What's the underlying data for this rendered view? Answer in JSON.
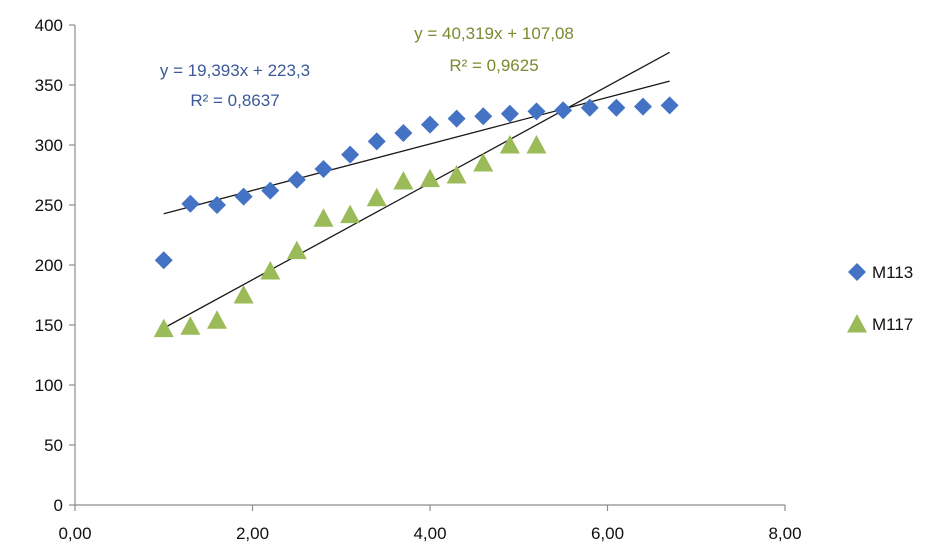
{
  "chart_data": {
    "type": "scatter",
    "title": "",
    "xlabel": "",
    "ylabel": "",
    "xlim": [
      0,
      8
    ],
    "ylim": [
      0,
      400
    ],
    "x_ticks": [
      "0,00",
      "2,00",
      "4,00",
      "6,00",
      "8,00"
    ],
    "y_ticks": [
      "0",
      "50",
      "100",
      "150",
      "200",
      "250",
      "300",
      "350",
      "400"
    ],
    "grid": false,
    "legend_position": "right",
    "series": [
      {
        "name": "M113",
        "marker": "diamond",
        "color": "#4472C4",
        "x": [
          1.0,
          1.3,
          1.6,
          1.9,
          2.2,
          2.5,
          2.8,
          3.1,
          3.4,
          3.7,
          4.0,
          4.3,
          4.6,
          4.9,
          5.2,
          5.5,
          5.8,
          6.1,
          6.4,
          6.7
        ],
        "y": [
          204,
          251,
          250,
          257,
          262,
          271,
          280,
          292,
          303,
          310,
          317,
          322,
          324,
          326,
          328,
          329,
          331,
          331,
          332,
          333
        ],
        "trendline": {
          "slope": 19.393,
          "intercept": 223.3,
          "x_range": [
            1.0,
            6.7
          ]
        },
        "equation": "y = 19,393x + 223,3",
        "r2": "R² = 0,8637"
      },
      {
        "name": "M117",
        "marker": "triangle",
        "color": "#9BBB59",
        "x": [
          1.0,
          1.3,
          1.6,
          1.9,
          2.2,
          2.5,
          2.8,
          3.1,
          3.4,
          3.7,
          4.0,
          4.3,
          4.6,
          4.9,
          5.2
        ],
        "y": [
          147,
          149,
          154,
          175,
          195,
          212,
          239,
          242,
          256,
          270,
          272,
          275,
          285,
          300,
          300
        ],
        "trendline": {
          "slope": 40.319,
          "intercept": 107.08,
          "x_range": [
            1.0,
            6.7
          ]
        },
        "equation": "y = 40,319x + 107,08",
        "r2": "R² = 0,9625"
      }
    ],
    "trendline_color": "#1a1a1a",
    "equation_colors": {
      "M113": "#3B5998",
      "M117": "#7A8A2E"
    }
  }
}
